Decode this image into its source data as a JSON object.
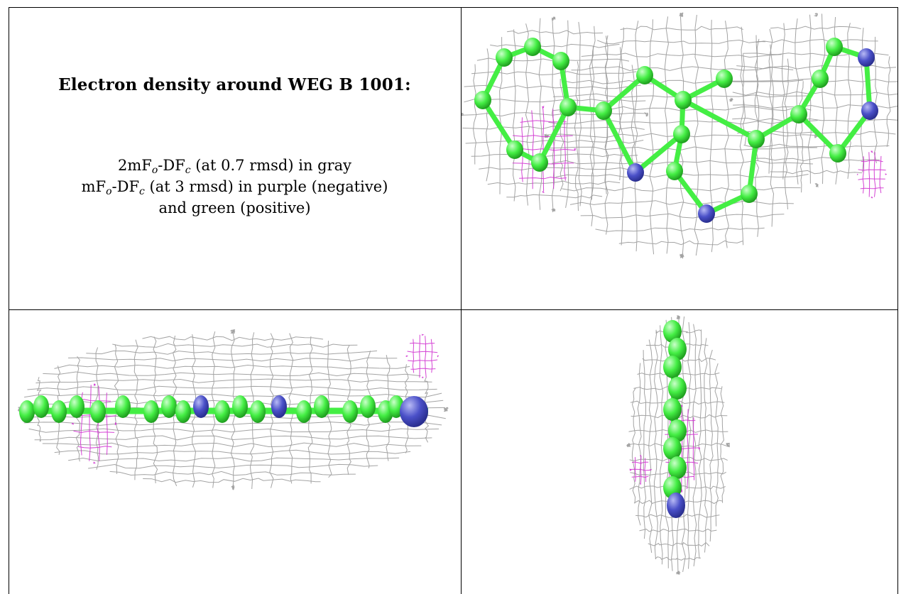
{
  "heading": "Electron density around WEG B 1001:",
  "legend": {
    "line1_prefix": "2mF",
    "line1_sub1": "o",
    "line1_mid": "-DF",
    "line1_sub2": "c",
    "line1_suffix": " (at 0.7 rmsd) in gray",
    "line2_prefix": "mF",
    "line2_sub1": "o",
    "line2_mid": "-DF",
    "line2_sub2": "c",
    "line2_suffix": " (at 3 rmsd) in purple (negative)",
    "line3": "and green (positive)"
  },
  "colors": {
    "carbon": "#44ee44",
    "nitrogen": "#4a50c8",
    "mesh_gray": "#9a9a9a",
    "mesh_purple": "#d030d0",
    "border": "#000000"
  },
  "panels": [
    {
      "view": "top view",
      "ligand": "WEG B 1001"
    },
    {
      "view": "side view",
      "ligand": "WEG B 1001"
    },
    {
      "view": "end-on view",
      "ligand": "WEG B 1001"
    }
  ]
}
